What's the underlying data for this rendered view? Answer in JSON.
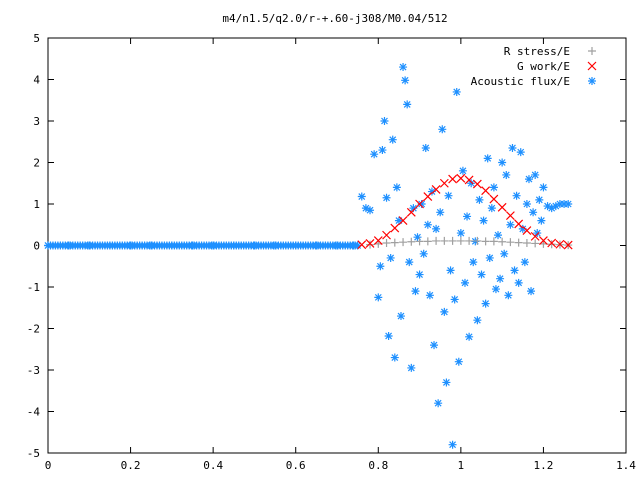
{
  "chart_data": {
    "type": "scatter",
    "title": "m4/n1.5/q2.0/r-+.60-j308/M0.04/512",
    "xlabel": "",
    "ylabel": "",
    "xlim": [
      0,
      1.4
    ],
    "ylim": [
      -5,
      5
    ],
    "x_ticks": [
      "0",
      "0.2",
      "0.4",
      "0.6",
      "0.8",
      "1",
      "1.2",
      "1.4"
    ],
    "y_ticks": [
      "5",
      "4",
      "3",
      "2",
      "1",
      "0",
      "-1",
      "-2",
      "-3",
      "-4",
      "-5"
    ],
    "grid": false,
    "legend_position": "top-right",
    "series": [
      {
        "name": "R stress/E",
        "marker": "+",
        "color": "#a0a0a0",
        "x": [
          0.78,
          0.8,
          0.82,
          0.84,
          0.86,
          0.88,
          0.9,
          0.92,
          0.94,
          0.96,
          0.98,
          1.0,
          1.02,
          1.04,
          1.06,
          1.08,
          1.1,
          1.12,
          1.14,
          1.16,
          1.18,
          1.2,
          1.22,
          1.24,
          1.26
        ],
        "y": [
          0.02,
          0.04,
          0.06,
          0.07,
          0.08,
          0.09,
          0.1,
          0.1,
          0.11,
          0.11,
          0.11,
          0.11,
          0.11,
          0.11,
          0.1,
          0.1,
          0.09,
          0.08,
          0.07,
          0.06,
          0.05,
          0.04,
          0.03,
          0.02,
          0.01
        ]
      },
      {
        "name": "G work/E",
        "marker": "x",
        "color": "#ff0000",
        "x": [
          0.76,
          0.78,
          0.8,
          0.82,
          0.84,
          0.86,
          0.88,
          0.9,
          0.92,
          0.94,
          0.96,
          0.98,
          1.0,
          1.02,
          1.04,
          1.06,
          1.08,
          1.1,
          1.12,
          1.14,
          1.16,
          1.18,
          1.2,
          1.22,
          1.24,
          1.26
        ],
        "y": [
          0.02,
          0.05,
          0.12,
          0.25,
          0.42,
          0.6,
          0.8,
          1.0,
          1.18,
          1.35,
          1.5,
          1.6,
          1.62,
          1.58,
          1.48,
          1.32,
          1.12,
          0.92,
          0.72,
          0.52,
          0.36,
          0.22,
          0.12,
          0.06,
          0.03,
          0.01
        ]
      },
      {
        "name": "Acoustic flux/E",
        "marker": "*",
        "color": "#1e90ff",
        "x": [
          0.0,
          0.05,
          0.1,
          0.15,
          0.2,
          0.25,
          0.3,
          0.35,
          0.4,
          0.45,
          0.5,
          0.55,
          0.6,
          0.65,
          0.7,
          0.74,
          0.76,
          0.77,
          0.78,
          0.79,
          0.8,
          0.805,
          0.81,
          0.815,
          0.82,
          0.825,
          0.83,
          0.835,
          0.84,
          0.845,
          0.85,
          0.855,
          0.86,
          0.865,
          0.87,
          0.875,
          0.88,
          0.885,
          0.89,
          0.895,
          0.9,
          0.905,
          0.91,
          0.915,
          0.92,
          0.925,
          0.93,
          0.935,
          0.94,
          0.945,
          0.95,
          0.955,
          0.96,
          0.965,
          0.97,
          0.975,
          0.98,
          0.985,
          0.99,
          0.995,
          1.0,
          1.005,
          1.01,
          1.015,
          1.02,
          1.025,
          1.03,
          1.035,
          1.04,
          1.045,
          1.05,
          1.055,
          1.06,
          1.065,
          1.07,
          1.075,
          1.08,
          1.085,
          1.09,
          1.095,
          1.1,
          1.105,
          1.11,
          1.115,
          1.12,
          1.125,
          1.13,
          1.135,
          1.14,
          1.145,
          1.15,
          1.155,
          1.16,
          1.165,
          1.17,
          1.175,
          1.18,
          1.185,
          1.19,
          1.195,
          1.2,
          1.21,
          1.22,
          1.23,
          1.24,
          1.25,
          1.26
        ],
        "y": [
          0.0,
          0.0,
          0.0,
          0.0,
          0.0,
          0.0,
          0.0,
          0.0,
          0.0,
          0.0,
          0.0,
          0.0,
          0.0,
          0.0,
          0.0,
          0.0,
          1.18,
          0.9,
          0.85,
          2.2,
          -1.25,
          -0.5,
          2.3,
          3.0,
          1.15,
          -2.18,
          -0.3,
          2.55,
          -2.7,
          1.4,
          0.6,
          -1.7,
          4.3,
          3.98,
          3.4,
          -0.4,
          -2.95,
          0.9,
          -1.1,
          0.2,
          -0.7,
          1.0,
          -0.2,
          2.35,
          0.5,
          -1.2,
          1.3,
          -2.4,
          0.4,
          -3.8,
          0.8,
          2.8,
          -1.6,
          -3.3,
          1.2,
          -0.6,
          -4.8,
          -1.3,
          3.7,
          -2.8,
          0.3,
          1.8,
          -0.9,
          0.7,
          -2.2,
          1.5,
          -0.4,
          0.1,
          -1.8,
          1.1,
          -0.7,
          0.6,
          -1.4,
          2.1,
          -0.3,
          0.9,
          1.4,
          -1.05,
          0.25,
          -0.8,
          2.0,
          -0.2,
          1.7,
          -1.2,
          0.5,
          2.35,
          -0.6,
          1.2,
          -0.9,
          2.25,
          0.4,
          -0.4,
          1.0,
          1.6,
          -1.1,
          0.8,
          1.7,
          0.3,
          1.1,
          0.6,
          1.4,
          0.95,
          0.9,
          0.95,
          1.0,
          1.0,
          1.0
        ]
      }
    ]
  }
}
